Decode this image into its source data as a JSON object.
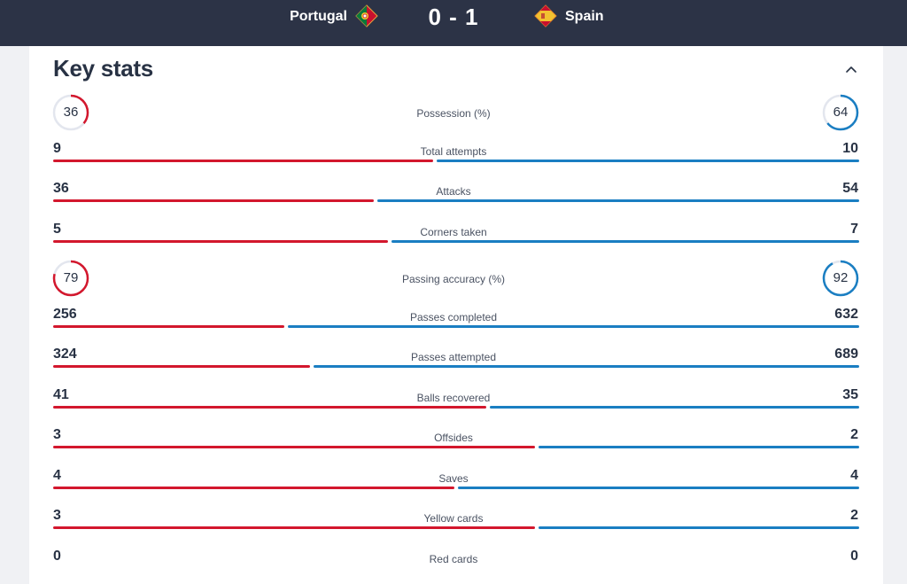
{
  "match": {
    "home_team": "Portugal",
    "away_team": "Spain",
    "score": "0 - 1",
    "home_flag_icon": "portugal-flag-icon",
    "away_flag_icon": "spain-flag-icon"
  },
  "panel": {
    "title": "Key stats",
    "collapse_icon": "chevron-up-icon"
  },
  "colors": {
    "home": "#d3172d",
    "away": "#1a7ec2",
    "header_bg": "#2c3346",
    "ring_track": "#e3e6ee"
  },
  "stats": [
    {
      "label": "Possession (%)",
      "home": 36,
      "away": 64,
      "kind": "ring"
    },
    {
      "label": "Total attempts",
      "home": 9,
      "away": 10,
      "kind": "bar"
    },
    {
      "label": "Attacks",
      "home": 36,
      "away": 54,
      "kind": "bar"
    },
    {
      "label": "Corners taken",
      "home": 5,
      "away": 7,
      "kind": "bar"
    },
    {
      "label": "Passing accuracy (%)",
      "home": 79,
      "away": 92,
      "kind": "ring"
    },
    {
      "label": "Passes completed",
      "home": 256,
      "away": 632,
      "kind": "bar"
    },
    {
      "label": "Passes attempted",
      "home": 324,
      "away": 689,
      "kind": "bar"
    },
    {
      "label": "Balls recovered",
      "home": 41,
      "away": 35,
      "kind": "bar"
    },
    {
      "label": "Offsides",
      "home": 3,
      "away": 2,
      "kind": "bar"
    },
    {
      "label": "Saves",
      "home": 4,
      "away": 4,
      "kind": "bar"
    },
    {
      "label": "Yellow cards",
      "home": 3,
      "away": 2,
      "kind": "bar"
    },
    {
      "label": "Red cards",
      "home": 0,
      "away": 0,
      "kind": "bar"
    }
  ]
}
